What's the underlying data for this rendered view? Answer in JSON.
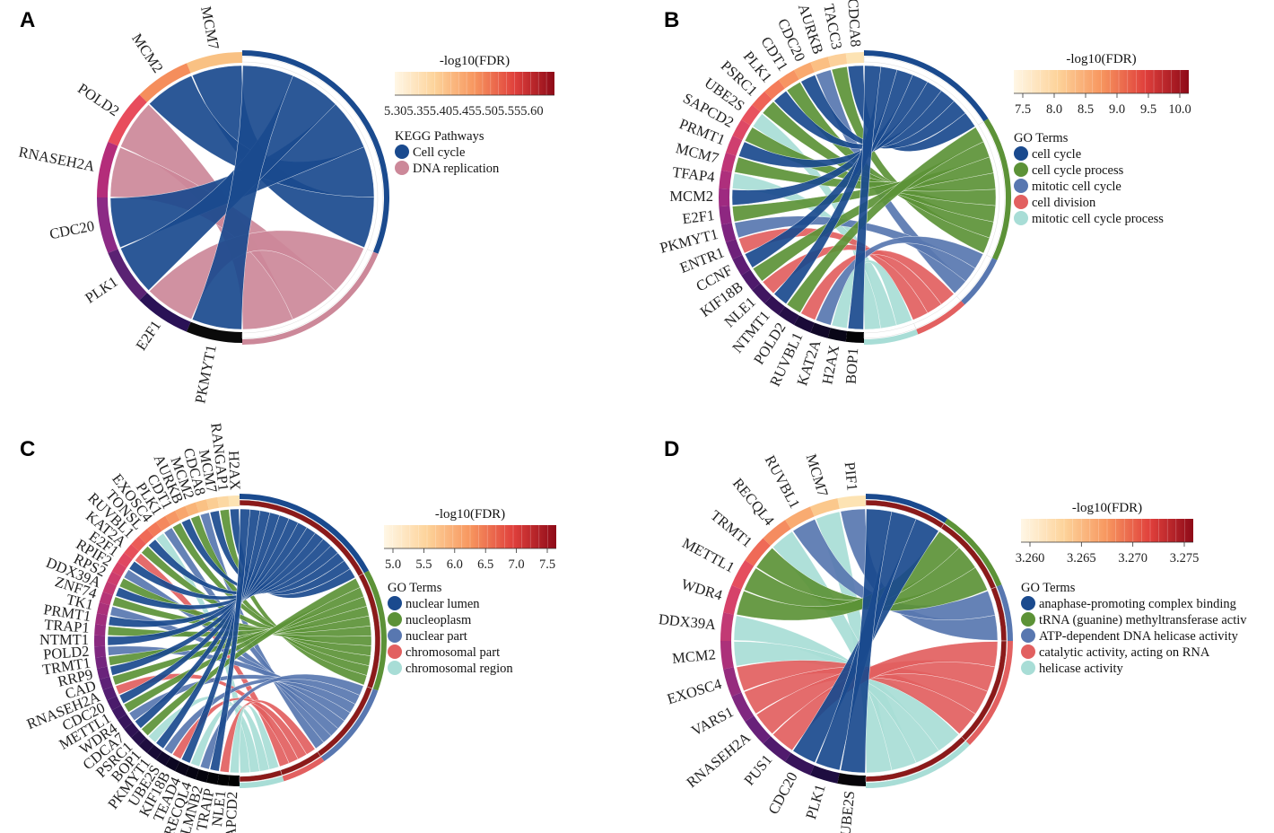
{
  "panels": [
    {
      "letter": "A",
      "colorbar": {
        "title": "-log10(FDR)",
        "ticks": [
          "5.305.355.405.455.505.555.60"
        ]
      },
      "legend_title": "KEGG Pathways",
      "terms": [
        {
          "name": "Cell cycle",
          "color": "#1a4a8e"
        },
        {
          "name": "DNA replication",
          "color": "#cc8899"
        }
      ],
      "genes": [
        "MCM7",
        "MCM2",
        "POLD2",
        "RNASEH2A",
        "CDC20",
        "PLK1",
        "E2F1",
        "PKMYT1"
      ],
      "gene_colors": [
        "#f9c183",
        "#f58e5c",
        "#e84c5c",
        "#b42d7a",
        "#8c2a85",
        "#5a2273",
        "#2a1256",
        "#0a0a0a"
      ],
      "links": [
        [
          0,
          0
        ],
        [
          1,
          0
        ],
        [
          2,
          1
        ],
        [
          3,
          1
        ],
        [
          4,
          0
        ],
        [
          5,
          0
        ],
        [
          6,
          1
        ],
        [
          7,
          0
        ]
      ],
      "inner_ring": true,
      "inner_ring_color": "#ffffff"
    },
    {
      "letter": "B",
      "colorbar": {
        "title": "-log10(FDR)",
        "ticks": [
          "7.5",
          "8.0",
          "8.5",
          "9.0",
          "9.5",
          "10.0"
        ]
      },
      "legend_title": "GO Terms",
      "terms": [
        {
          "name": "cell cycle",
          "color": "#1a4a8e"
        },
        {
          "name": "cell cycle process",
          "color": "#5c9237"
        },
        {
          "name": "mitotic cell cycle",
          "color": "#5877b0"
        },
        {
          "name": "cell division",
          "color": "#e26060"
        },
        {
          "name": "mitotic cell cycle process",
          "color": "#a8ddd6"
        }
      ],
      "genes": [
        "CDCA8",
        "TACC3",
        "AURKB",
        "CDC20",
        "CDT1",
        "PLK1",
        "PSRC1",
        "UBE2S",
        "SAPCD2",
        "PRMT1",
        "MCM7",
        "TFAP4",
        "MCM2",
        "E2F1",
        "PKMYT1",
        "ENTR1",
        "CCNF",
        "KIF18B",
        "NLE1",
        "NTMT1",
        "POLD2",
        "RUVBL1",
        "KAT2A",
        "H2AX",
        "BOP1"
      ],
      "gene_colors": [
        "#fde3b3",
        "#fcd09a",
        "#fbbf83",
        "#f9a96f",
        "#f79462",
        "#f47b59",
        "#ee6356",
        "#e8525e",
        "#de4865",
        "#cf3f6f",
        "#bf3677",
        "#ae2f7c",
        "#9e2a80",
        "#8e2781",
        "#7e247f",
        "#6e217a",
        "#5e1e74",
        "#4e1a6b",
        "#401661",
        "#321255",
        "#250e47",
        "#1a0b38",
        "#110828",
        "#090617",
        "#030305"
      ],
      "links": [
        [
          0,
          0
        ],
        [
          1,
          1
        ],
        [
          2,
          2
        ],
        [
          3,
          0
        ],
        [
          4,
          1
        ],
        [
          5,
          0
        ],
        [
          6,
          1
        ],
        [
          7,
          4
        ],
        [
          8,
          1
        ],
        [
          9,
          0
        ],
        [
          10,
          1
        ],
        [
          11,
          4
        ],
        [
          12,
          0
        ],
        [
          13,
          1
        ],
        [
          14,
          2
        ],
        [
          15,
          3
        ],
        [
          16,
          0
        ],
        [
          17,
          1
        ],
        [
          18,
          3
        ],
        [
          19,
          0
        ],
        [
          20,
          1
        ],
        [
          21,
          3
        ],
        [
          22,
          2
        ],
        [
          23,
          4
        ],
        [
          24,
          0
        ]
      ],
      "inner_ring": false,
      "inner_ring_color": "#ffffff"
    },
    {
      "letter": "C",
      "colorbar": {
        "title": "-log10(FDR)",
        "ticks": [
          "5.0",
          "5.5",
          "6.0",
          "6.5",
          "7.0",
          "7.5"
        ]
      },
      "legend_title": "GO Terms",
      "terms": [
        {
          "name": "nuclear lumen",
          "color": "#1a4a8e"
        },
        {
          "name": "nucleoplasm",
          "color": "#5c9237"
        },
        {
          "name": "nuclear part",
          "color": "#5877b0"
        },
        {
          "name": "chromosomal part",
          "color": "#e26060"
        },
        {
          "name": "chromosomal region",
          "color": "#a8ddd6"
        }
      ],
      "genes": [
        "H2AX",
        "RANGAP1",
        "MCM7",
        "CDCA8",
        "MCM2",
        "AURKB",
        "CDT1",
        "PLK1",
        "EXOSC4",
        "TONSL",
        "RUVBL1",
        "KAT2A",
        "E2F1",
        "RPIF2",
        "RPS2",
        "DDX39A",
        "ZNF74",
        "TK1",
        "PRMT1",
        "TRAP1",
        "NTMT1",
        "POLD2",
        "TRMT1",
        "RRP9",
        "CAD",
        "RNASEH2A",
        "CDC20",
        "METTL1",
        "WDR4",
        "CDCA7",
        "PSRC1",
        "BOP1",
        "PKMYT1",
        "UBE2S",
        "KIF18B",
        "TEAD4",
        "RECQL4",
        "LMNB2",
        "TRAIP",
        "NLE1",
        "SAPCD2"
      ],
      "gene_colors": [
        "#fde3b3",
        "#fcd8a3",
        "#fbcd93",
        "#fac184",
        "#f9b478",
        "#f8a66d",
        "#f69764",
        "#f4885d",
        "#f27958",
        "#ef6a56",
        "#eb5c57",
        "#e6505b",
        "#e04761",
        "#d74267",
        "#cd3d6d",
        "#c23972",
        "#b73577",
        "#ab317a",
        "#a02e7d",
        "#952c7f",
        "#8a2a80",
        "#7f2880",
        "#74267e",
        "#69237b",
        "#5e2177",
        "#541e72",
        "#4a1b6b",
        "#401864",
        "#37155c",
        "#2e1253",
        "#26104a",
        "#1f0d40",
        "#180b36",
        "#12092c",
        "#0d0722",
        "#090519",
        "#060412",
        "#04030c",
        "#030307",
        "#020204",
        "#010101"
      ],
      "links": [
        [
          0,
          0
        ],
        [
          1,
          1
        ],
        [
          2,
          0
        ],
        [
          3,
          2
        ],
        [
          4,
          1
        ],
        [
          5,
          0
        ],
        [
          6,
          1
        ],
        [
          7,
          2
        ],
        [
          8,
          4
        ],
        [
          9,
          0
        ],
        [
          10,
          1
        ],
        [
          11,
          3
        ],
        [
          12,
          0
        ],
        [
          13,
          2
        ],
        [
          14,
          1
        ],
        [
          15,
          0
        ],
        [
          16,
          1
        ],
        [
          17,
          2
        ],
        [
          18,
          0
        ],
        [
          19,
          1
        ],
        [
          20,
          0
        ],
        [
          21,
          2
        ],
        [
          22,
          1
        ],
        [
          23,
          0
        ],
        [
          24,
          1
        ],
        [
          25,
          3
        ],
        [
          26,
          0
        ],
        [
          27,
          1
        ],
        [
          28,
          2
        ],
        [
          29,
          0
        ],
        [
          30,
          1
        ],
        [
          31,
          4
        ],
        [
          32,
          0
        ],
        [
          33,
          2
        ],
        [
          34,
          3
        ],
        [
          35,
          0
        ],
        [
          36,
          4
        ],
        [
          37,
          2
        ],
        [
          38,
          0
        ],
        [
          39,
          3
        ],
        [
          40,
          4
        ]
      ],
      "inner_ring": true,
      "inner_ring_color": "#8b1a1a"
    },
    {
      "letter": "D",
      "colorbar": {
        "title": "-log10(FDR)",
        "ticks": [
          "3.260",
          "3.265",
          "3.270",
          "3.275"
        ]
      },
      "legend_title": "GO Terms",
      "terms": [
        {
          "name": "anaphase-promoting complex binding",
          "color": "#1a4a8e"
        },
        {
          "name": "tRNA (guanine) methyltransferase activ",
          "color": "#5c9237"
        },
        {
          "name": "ATP-dependent DNA helicase activity",
          "color": "#5877b0"
        },
        {
          "name": "catalytic activity, acting on RNA",
          "color": "#e26060"
        },
        {
          "name": "helicase activity",
          "color": "#a8ddd6"
        }
      ],
      "genes": [
        "PIF1",
        "MCM7",
        "RUVBL1",
        "RECQL4",
        "TRMT1",
        "METTL1",
        "WDR4",
        "DDX39A",
        "MCM2",
        "EXOSC4",
        "VARS1",
        "RNASEH2A",
        "PUS1",
        "CDC20",
        "PLK1",
        "UBE2S"
      ],
      "gene_colors": [
        "#fde3b3",
        "#fbc88c",
        "#f9ab71",
        "#f58c60",
        "#ef6a57",
        "#e54e5e",
        "#d6426a",
        "#c23a74",
        "#ac317a",
        "#962c7e",
        "#802780",
        "#68217a",
        "#501b6d",
        "#37145a",
        "#1e0d40",
        "#070409"
      ],
      "links": [
        [
          0,
          2
        ],
        [
          1,
          4
        ],
        [
          2,
          2
        ],
        [
          3,
          4
        ],
        [
          4,
          1
        ],
        [
          5,
          1
        ],
        [
          6,
          1
        ],
        [
          7,
          4
        ],
        [
          8,
          4
        ],
        [
          9,
          3
        ],
        [
          10,
          3
        ],
        [
          11,
          3
        ],
        [
          12,
          3
        ],
        [
          13,
          0
        ],
        [
          14,
          0
        ],
        [
          15,
          0
        ]
      ],
      "inner_ring": true,
      "inner_ring_color": "#8b1a1a"
    }
  ]
}
